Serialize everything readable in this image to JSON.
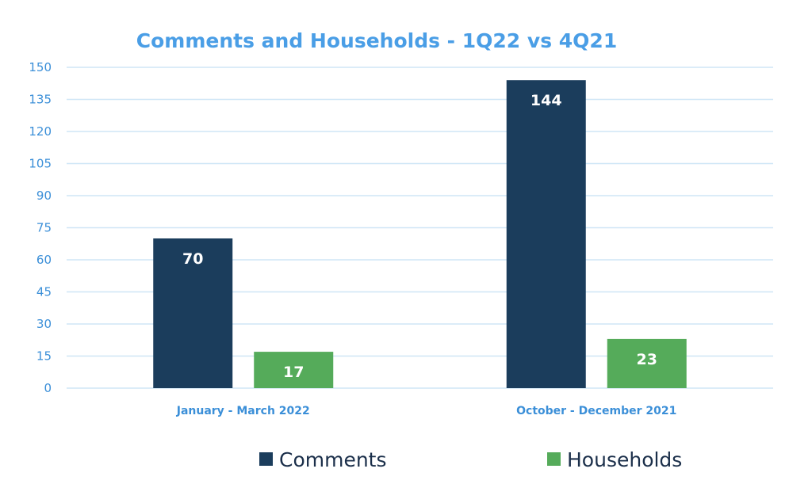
{
  "chart_data": {
    "type": "bar",
    "title": "Comments and Households - 1Q22 vs 4Q21",
    "categories": [
      "January - March 2022",
      "October - December 2021"
    ],
    "series": [
      {
        "name": "Comments",
        "values": [
          70,
          144
        ],
        "color": "#1b3d5c"
      },
      {
        "name": "Households",
        "values": [
          17,
          23
        ],
        "color": "#55ab5a"
      }
    ],
    "y_ticks": [
      "0",
      "15",
      "30",
      "45",
      "60",
      "75",
      "90",
      "105",
      "120",
      "135",
      "150"
    ],
    "ylim": [
      0,
      150
    ],
    "grid": true,
    "legend_position": "bottom",
    "data_labels": true
  }
}
